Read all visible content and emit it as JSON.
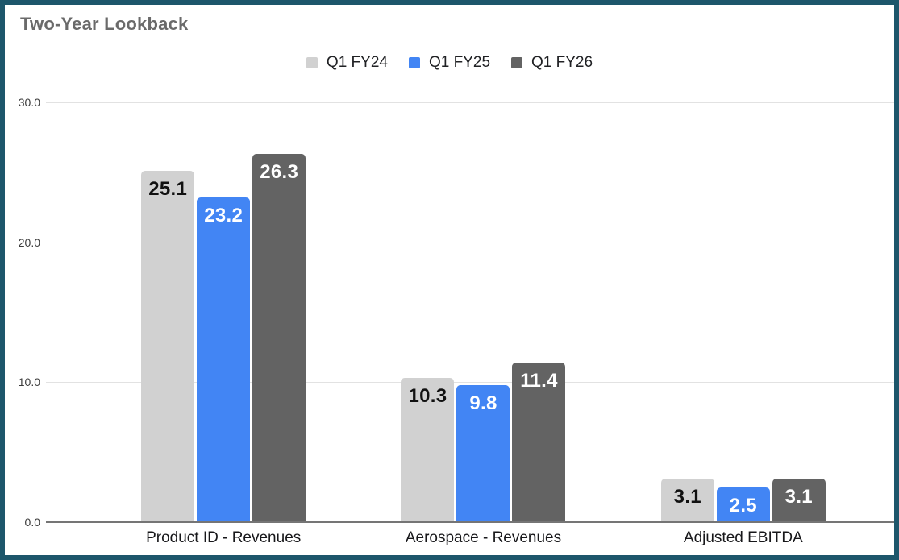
{
  "frame": {
    "border_color": "#1d566b",
    "background_color": "#ffffff"
  },
  "chart_data": {
    "type": "bar",
    "title": "Two-Year Lookback",
    "title_color": "#6a6a6a",
    "categories": [
      "Product ID - Revenues",
      "Aerospace - Revenues",
      "Adjusted EBITDA"
    ],
    "series": [
      {
        "name": "Q1 FY24",
        "color": "#d1d1d1",
        "label_color": "#111111",
        "values": [
          25.1,
          10.3,
          3.1
        ]
      },
      {
        "name": "Q1 FY25",
        "color": "#4285f4",
        "label_color": "#ffffff",
        "values": [
          23.2,
          9.8,
          2.5
        ]
      },
      {
        "name": "Q1 FY26",
        "color": "#636363",
        "label_color": "#ffffff",
        "values": [
          26.3,
          11.4,
          3.1
        ]
      }
    ],
    "ylim": [
      0,
      30
    ],
    "y_ticks": [
      {
        "value": 0,
        "label": "0.0"
      },
      {
        "value": 10,
        "label": "10.0"
      },
      {
        "value": 20,
        "label": "20.0"
      },
      {
        "value": 30,
        "label": "30.0"
      }
    ],
    "grid": true,
    "gridline_color": "#e2e2e2",
    "axis_line_color": "#757575",
    "legend_position": "top",
    "value_label_decimals": 1
  }
}
